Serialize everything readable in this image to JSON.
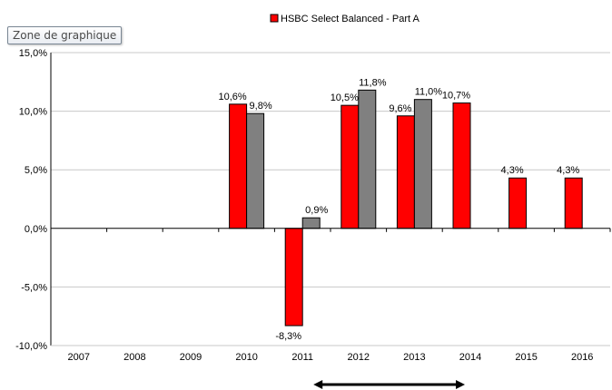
{
  "tooltip": {
    "label": "Zone de graphique"
  },
  "colors": {
    "primary": "#ff0000",
    "secondary": "#808080",
    "grid": "#c8c8c8",
    "axis": "#000000"
  },
  "chart_data": {
    "type": "bar",
    "title": "",
    "xlabel": "",
    "ylabel": "",
    "legend": {
      "placement": "top-center"
    },
    "grid": true,
    "ylim": [
      -10,
      15
    ],
    "yticks": [
      -10,
      -5,
      0,
      5,
      10,
      15
    ],
    "ytick_labels": [
      "-10,0%",
      "-5,0%",
      "0,0%",
      "5,0%",
      "10,0%",
      "15,0%"
    ],
    "categories": [
      "2007",
      "2008",
      "2009",
      "2010",
      "2011",
      "2012",
      "2013",
      "2014",
      "2015",
      "2016"
    ],
    "series": [
      {
        "name": "HSBC Select Balanced - Part A",
        "color": "#ff0000",
        "values": [
          null,
          null,
          null,
          10.6,
          -8.3,
          10.5,
          9.6,
          10.7,
          4.3,
          4.3
        ],
        "labels": [
          "",
          "",
          "",
          "10,6%",
          "-8,3%",
          "10,5%",
          "9,6%",
          "10,7%",
          "4,3%",
          "4,3%"
        ]
      },
      {
        "name": "",
        "color": "#808080",
        "values": [
          null,
          null,
          null,
          9.8,
          0.9,
          11.8,
          11.0,
          null,
          null,
          null
        ],
        "labels": [
          "",
          "",
          "",
          "9,8%",
          "0,9%",
          "11,8%",
          "11,0%",
          "",
          "",
          ""
        ]
      }
    ],
    "annotations": [
      {
        "type": "double-arrow",
        "from": "2011",
        "to": "2014"
      }
    ]
  }
}
